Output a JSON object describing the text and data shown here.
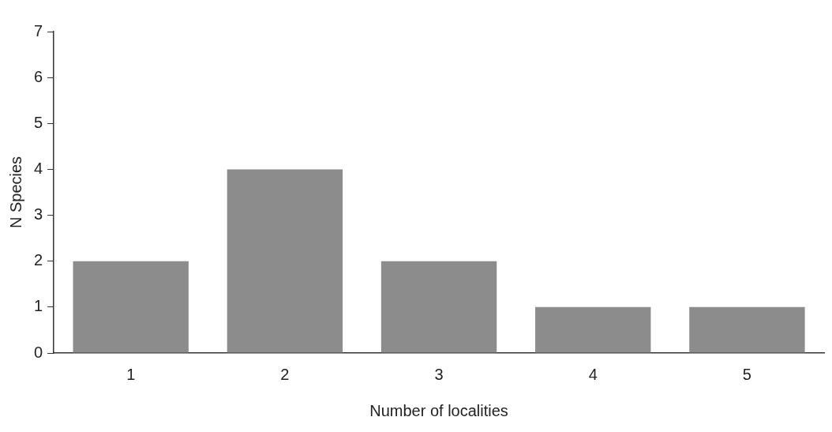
{
  "chart_data": {
    "type": "bar",
    "xlabel": "Number of localities",
    "ylabel": "N Species",
    "categories": [
      "1",
      "2",
      "3",
      "4",
      "5"
    ],
    "values": [
      2,
      4,
      2,
      1,
      1
    ],
    "color": "#8c8c8c",
    "ylim": [
      0,
      7
    ],
    "yticks": [
      0,
      1,
      2,
      3,
      4,
      5,
      6,
      7
    ],
    "grid": false,
    "legend": false
  }
}
